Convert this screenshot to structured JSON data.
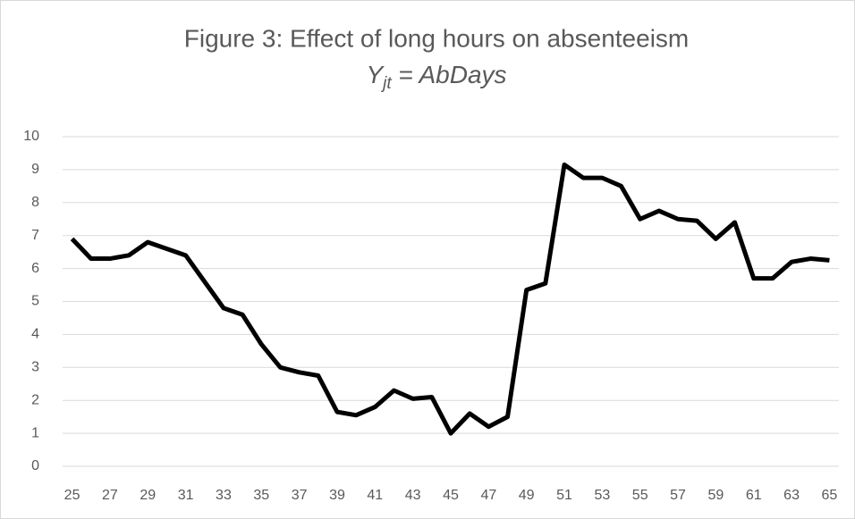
{
  "chart_data": {
    "type": "line",
    "title": "Figure 3:  Effect of long hours on absenteeism",
    "subtitle": {
      "base": "Y",
      "subscript": "jt",
      "rest": " = AbDays"
    },
    "categories": [
      "25",
      null,
      "27",
      null,
      "29",
      null,
      "31",
      null,
      "33",
      null,
      "35",
      null,
      "37",
      null,
      "39",
      null,
      "41",
      null,
      "43",
      null,
      "45",
      null,
      "47",
      null,
      "49",
      null,
      "51",
      null,
      "53",
      null,
      "55",
      null,
      "57",
      null,
      "59",
      null,
      "61",
      null,
      "63",
      null,
      "65"
    ],
    "values": [
      6.9,
      6.3,
      6.3,
      6.4,
      6.8,
      6.6,
      6.4,
      5.6,
      4.8,
      4.6,
      3.7,
      3.0,
      2.85,
      2.75,
      1.65,
      1.55,
      1.8,
      2.3,
      2.05,
      2.1,
      1.0,
      1.6,
      1.2,
      1.5,
      5.35,
      5.55,
      9.15,
      8.75,
      8.75,
      8.5,
      7.5,
      7.75,
      7.5,
      7.45,
      6.9,
      7.4,
      5.7,
      5.7,
      6.2,
      6.3,
      6.25
    ],
    "color": "#000000",
    "ylim": [
      0,
      10
    ],
    "yticks": [
      0,
      1,
      2,
      3,
      4,
      5,
      6,
      7,
      8,
      9,
      10
    ],
    "grid": true
  }
}
